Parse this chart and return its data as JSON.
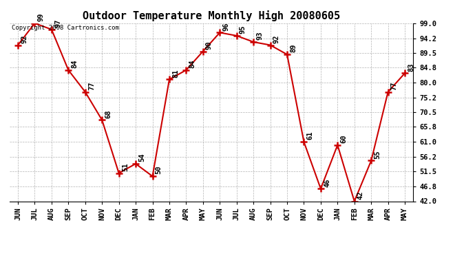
{
  "title": "Outdoor Temperature Monthly High 20080605",
  "copyright_text": "Copyright 2008 Cartronics.com",
  "months": [
    "JUN",
    "JUL",
    "AUG",
    "SEP",
    "OCT",
    "NOV",
    "DEC",
    "JAN",
    "FEB",
    "MAR",
    "APR",
    "MAY",
    "JUN",
    "JUL",
    "AUG",
    "SEP",
    "OCT",
    "NOV",
    "DEC",
    "JAN",
    "FEB",
    "MAR",
    "APR",
    "MAY"
  ],
  "values": [
    92,
    99,
    97,
    84,
    77,
    68,
    51,
    54,
    50,
    81,
    84,
    90,
    96,
    95,
    93,
    92,
    89,
    61,
    46,
    60,
    42,
    55,
    77,
    83
  ],
  "line_color": "#cc0000",
  "marker_color": "#cc0000",
  "bg_color": "#ffffff",
  "grid_color": "#aaaaaa",
  "yticks": [
    42.0,
    46.8,
    51.5,
    56.2,
    61.0,
    65.8,
    70.5,
    75.2,
    80.0,
    84.8,
    89.5,
    94.2,
    99.0
  ],
  "ymin": 42.0,
  "ymax": 99.0,
  "title_fontsize": 11,
  "label_fontsize": 7.5,
  "tick_fontsize": 7.5,
  "copyright_fontsize": 6.5
}
